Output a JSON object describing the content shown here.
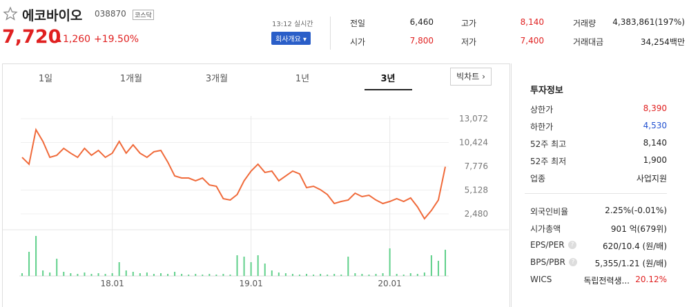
{
  "header": {
    "name": "에코바이오",
    "code": "038870",
    "market": "코스닥",
    "price": "7,720",
    "change": "1,260",
    "change_pct": "+19.50%",
    "time": "13:12 실시간",
    "company_button": "회사개요"
  },
  "quotes": [
    {
      "label": "전일",
      "value": "6,460",
      "color": "#222222"
    },
    {
      "label": "고가",
      "value": "8,140",
      "color": "#e02020"
    },
    {
      "label": "거래량",
      "value": "4,383,861(197%)",
      "color": "#222222"
    },
    {
      "label": "시가",
      "value": "7,800",
      "color": "#e02020"
    },
    {
      "label": "저가",
      "value": "7,400",
      "color": "#e02020"
    },
    {
      "label": "거래대금",
      "value": "34,254백만",
      "color": "#222222"
    }
  ],
  "tabs": [
    "1일",
    "1개월",
    "3개월",
    "1년",
    "3년"
  ],
  "active_tab": 4,
  "big_chart": "빅차트",
  "chart_data": {
    "type": "line",
    "color": "#f06a3a",
    "categories": [
      null,
      null,
      null,
      null,
      null,
      null,
      null,
      null,
      null,
      null,
      null,
      null,
      null,
      "18.01",
      null,
      null,
      null,
      null,
      null,
      null,
      null,
      null,
      null,
      null,
      null,
      null,
      null,
      null,
      null,
      null,
      null,
      null,
      null,
      "19.01",
      null,
      null,
      null,
      null,
      null,
      null,
      null,
      null,
      null,
      null,
      null,
      null,
      null,
      null,
      null,
      null,
      null,
      null,
      null,
      "20.01",
      null,
      null,
      null,
      null,
      null,
      null,
      null,
      null
    ],
    "values": [
      8770,
      8010,
      11840,
      10540,
      8770,
      9000,
      9770,
      9230,
      8770,
      9770,
      9000,
      9540,
      8770,
      9230,
      10540,
      9230,
      10160,
      9230,
      8770,
      9390,
      9540,
      8240,
      6700,
      6470,
      6470,
      6160,
      6470,
      5700,
      5550,
      4170,
      4020,
      4630,
      6160,
      7240,
      8010,
      7090,
      7240,
      6160,
      6700,
      7240,
      6930,
      5400,
      5550,
      5170,
      4630,
      3630,
      3860,
      4020,
      4780,
      4400,
      4550,
      4020,
      3630,
      3860,
      4170,
      3860,
      4250,
      3250,
      1940,
      2860,
      4020,
      7720
    ],
    "ylim": [
      2480,
      13072
    ],
    "yticks": [
      {
        "value": 13072,
        "label": "13,072"
      },
      {
        "value": 10424,
        "label": "10,424"
      },
      {
        "value": 7776,
        "label": "7,776"
      },
      {
        "value": 5128,
        "label": "5,128"
      },
      {
        "value": 2480,
        "label": "2,480"
      }
    ],
    "grid": true,
    "volume": {
      "color": "#5fd08a",
      "ylim": [
        0,
        60
      ],
      "values": [
        4,
        35,
        58,
        8,
        5,
        25,
        6,
        4,
        3,
        5,
        3,
        4,
        3,
        4,
        20,
        8,
        6,
        4,
        5,
        3,
        4,
        3,
        6,
        3,
        2,
        3,
        2,
        3,
        2,
        3,
        2,
        30,
        28,
        20,
        30,
        18,
        8,
        5,
        4,
        3,
        2,
        3,
        2,
        3,
        2,
        3,
        2,
        28,
        4,
        3,
        2,
        3,
        4,
        40,
        3,
        2,
        4,
        3,
        5,
        30,
        22,
        38
      ]
    }
  },
  "info": {
    "title": "투자정보",
    "groups": [
      [
        {
          "label": "상한가",
          "value": "8,390",
          "color": "#e02020"
        },
        {
          "label": "하한가",
          "value": "4,530",
          "color": "#2050d0"
        },
        {
          "label": "52주 최고",
          "value": "8,140",
          "color": "#222222"
        },
        {
          "label": "52주 최저",
          "value": "1,900",
          "color": "#222222"
        },
        {
          "label": "업종",
          "value": "사업지원",
          "color": "#222222"
        }
      ],
      [
        {
          "label": "외국인비율",
          "value": "2.25%(-0.01%)",
          "color": "#222222"
        },
        {
          "label": "시가총액",
          "value": "901 억(679위)",
          "color": "#222222"
        },
        {
          "label": "EPS/PER",
          "value": "620/10.4 (원/배)",
          "color": "#222222",
          "help": true
        },
        {
          "label": "BPS/PBR",
          "value": "5,355/1.21 (원/배)",
          "color": "#222222",
          "help": true
        },
        {
          "label": "WICS",
          "value": "독립전력생...",
          "color": "#222222",
          "extra": "20.12%",
          "extra_color": "#e02020"
        }
      ]
    ]
  }
}
